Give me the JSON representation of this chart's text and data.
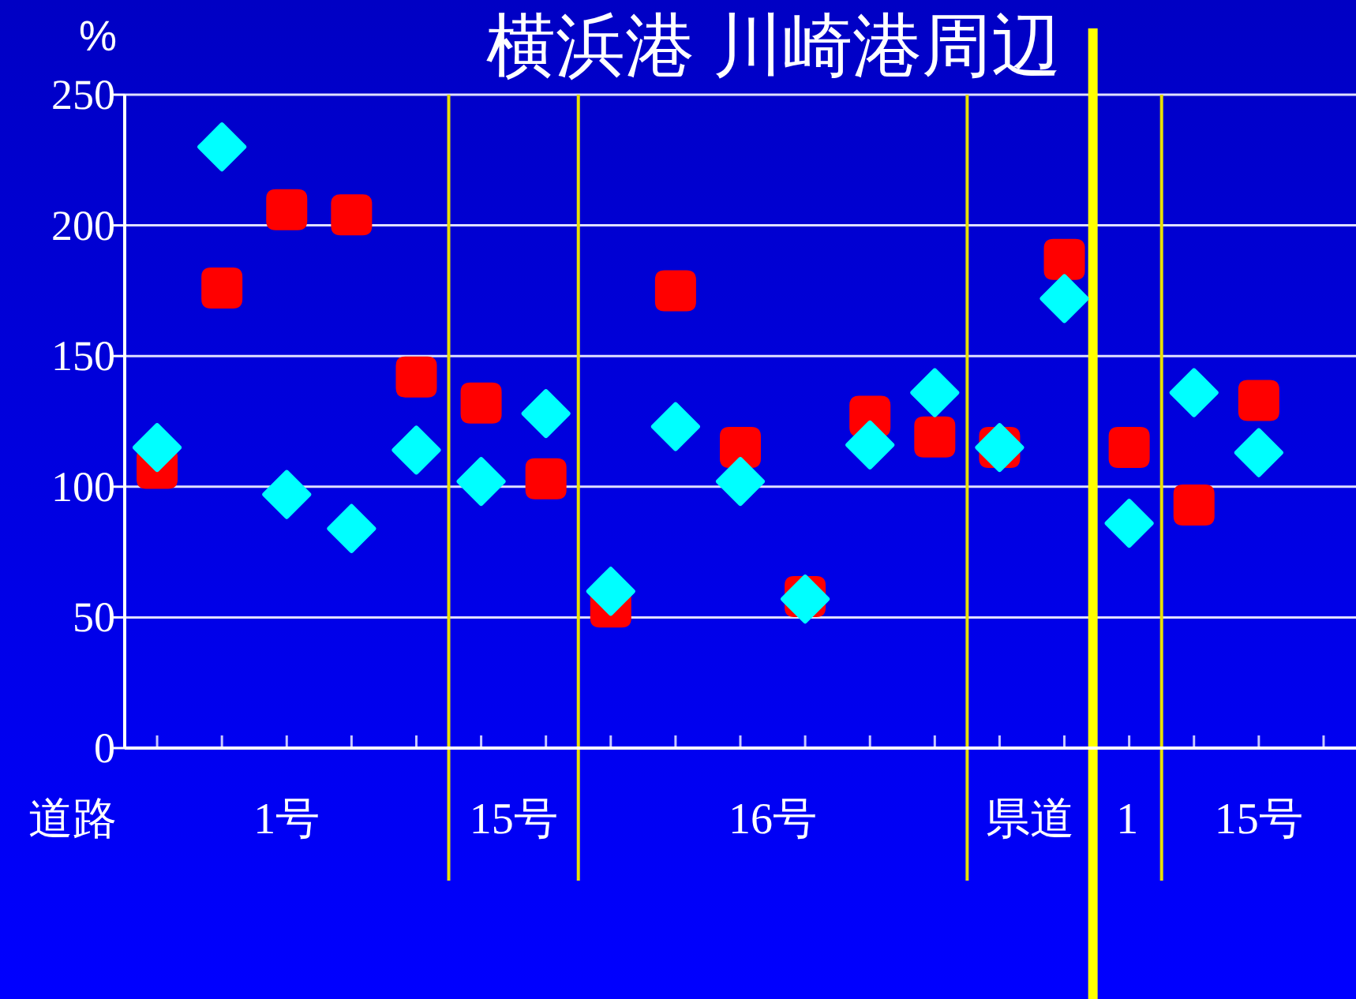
{
  "chart_data": {
    "type": "scatter",
    "title": "横浜港 川崎港周辺",
    "xlabel": "道路",
    "ylabel": "%",
    "categories": [
      null,
      null,
      null,
      null,
      null,
      null,
      null,
      null,
      null,
      null,
      null,
      null,
      null,
      null,
      null,
      null,
      null,
      null,
      null
    ],
    "ylim": [
      0,
      250
    ],
    "yticks": [
      0,
      50,
      100,
      150,
      200,
      250
    ],
    "grid": "y",
    "series": [
      {
        "color": "#ff0000",
        "marker": "square",
        "values": [
          107,
          176,
          206,
          204,
          142,
          132,
          103,
          54,
          175,
          115,
          58,
          127,
          119,
          115,
          187,
          115,
          93,
          133,
          null
        ]
      },
      {
        "color": "#00ffff",
        "marker": "diamond",
        "values": [
          115,
          230,
          97,
          84,
          114,
          102,
          128,
          60,
          123,
          102,
          57,
          116,
          136,
          115,
          172,
          86,
          136,
          113,
          null
        ]
      }
    ],
    "annotations": [
      "1号",
      "15号",
      "16号",
      "県道",
      "1",
      "15号"
    ]
  }
}
